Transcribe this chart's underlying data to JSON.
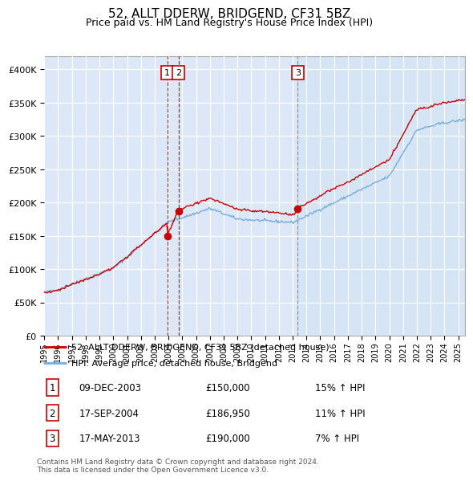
{
  "title": "52, ALLT DDERW, BRIDGEND, CF31 5BZ",
  "subtitle": "Price paid vs. HM Land Registry's House Price Index (HPI)",
  "background_color": "#ffffff",
  "plot_bg_color": "#dce8f8",
  "sale_color": "#cc0000",
  "hpi_color": "#7aacda",
  "sale_label": "52, ALLT DDERW, BRIDGEND, CF31 5BZ (detached house)",
  "hpi_label": "HPI: Average price, detached house, Bridgend",
  "ylim": [
    0,
    420000
  ],
  "yticks": [
    0,
    50000,
    100000,
    150000,
    200000,
    250000,
    300000,
    350000,
    400000
  ],
  "ytick_labels": [
    "£0",
    "£50K",
    "£100K",
    "£150K",
    "£200K",
    "£250K",
    "£300K",
    "£350K",
    "£400K"
  ],
  "sale_years": [
    2003.92,
    2004.72,
    2013.37
  ],
  "sale_prices": [
    150000,
    186950,
    190000
  ],
  "vline_colors": [
    "#cc0000",
    "#cc0000",
    "#888888"
  ],
  "vline_styles": [
    "--",
    "--",
    "--"
  ],
  "marker1_label": "1",
  "marker2_label": "2",
  "marker3_label": "3",
  "sale1_date": "09-DEC-2003",
  "sale1_price": "£150,000",
  "sale1_hpi": "15% ↑ HPI",
  "sale2_date": "17-SEP-2004",
  "sale2_price": "£186,950",
  "sale2_hpi": "11% ↑ HPI",
  "sale3_date": "17-MAY-2013",
  "sale3_price": "£190,000",
  "sale3_hpi": "7% ↑ HPI",
  "footnote": "Contains HM Land Registry data © Crown copyright and database right 2024.\nThis data is licensed under the Open Government Licence v3.0.",
  "xlim_start": 1995.0,
  "xlim_end": 2025.5
}
